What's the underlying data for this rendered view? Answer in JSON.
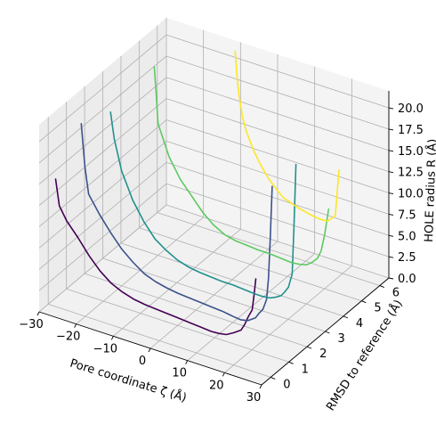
{
  "chart_data": {
    "type": "line3d",
    "xlabel": "Pore coordinate ζ (Å)",
    "ylabel": "RMSD to reference (Å)",
    "zlabel": "HOLE radius R (Å)",
    "xlim": [
      -30,
      30
    ],
    "ylim": [
      -0.5,
      6.5
    ],
    "zlim": [
      0,
      22
    ],
    "x_ticks": [
      -30,
      -20,
      -10,
      0,
      10,
      20,
      30
    ],
    "y_ticks": [
      0,
      1,
      2,
      3,
      4,
      5,
      6
    ],
    "z_ticks": [
      0.0,
      2.5,
      5.0,
      7.5,
      10.0,
      12.5,
      15.0,
      17.5,
      20.0
    ],
    "x_tick_labels": [
      "−30",
      "−20",
      "−10",
      "0",
      "10",
      "20",
      "30"
    ],
    "y_tick_labels": [
      "0",
      "1",
      "2",
      "3",
      "4",
      "5",
      "6"
    ],
    "z_tick_labels": [
      "0.0",
      "2.5",
      "5.0",
      "7.5",
      "10.0",
      "12.5",
      "15.0",
      "17.5",
      "20.0"
    ],
    "grid": true,
    "series": [
      {
        "rmsd": 0,
        "color": "#440154",
        "zeta": [
          -28,
          -27,
          -25,
          -22,
          -19,
          -16,
          -13,
          -10,
          -7,
          -4,
          -1,
          2,
          5,
          8,
          11,
          14,
          16,
          18,
          20,
          22,
          23,
          24,
          25,
          25.5,
          26
        ],
        "radius": [
          15,
          12,
          10.5,
          9,
          7.3,
          5.9,
          4.9,
          4.3,
          3.9,
          3.7,
          3.6,
          3.5,
          3.4,
          3.3,
          3.2,
          3.1,
          3.15,
          3.3,
          3.8,
          4.4,
          5.2,
          6.3,
          7.2,
          9,
          11
        ]
      },
      {
        "rmsd": 1,
        "color": "#3b528b",
        "zeta": [
          -26,
          -25,
          -24,
          -21,
          -18,
          -15,
          -12,
          -9,
          -6,
          -3,
          0,
          3,
          6,
          9,
          12,
          15,
          17,
          19,
          21,
          22,
          23,
          24,
          24.5,
          25,
          25.5
        ],
        "radius": [
          20,
          15,
          12,
          10,
          8.3,
          6.8,
          5.7,
          4.8,
          4.3,
          4,
          3.8,
          3.7,
          3.6,
          3.5,
          3.4,
          3.2,
          3.1,
          3.3,
          3.9,
          4.6,
          5.2,
          6.5,
          9,
          14,
          20
        ]
      },
      {
        "rmsd": 2,
        "color": "#21918c",
        "zeta": [
          -23,
          -22,
          -20,
          -17,
          -14,
          -11,
          -8,
          -5,
          -2,
          1,
          4,
          7,
          10,
          13,
          16,
          18,
          20,
          21.5,
          23,
          24,
          25,
          26,
          26.5,
          27
        ],
        "radius": [
          20,
          17,
          13.5,
          10.5,
          8.4,
          6.8,
          5.9,
          5.2,
          4.8,
          4.6,
          4.5,
          4.4,
          4.4,
          4.3,
          4.2,
          4.2,
          4.3,
          4.6,
          5,
          5.6,
          6.3,
          8,
          14,
          21
        ]
      },
      {
        "rmsd": 4,
        "color": "#5ec962",
        "zeta": [
          -21,
          -20.5,
          -20,
          -17,
          -14,
          -11,
          -8,
          -5,
          -2,
          1,
          4,
          7,
          10,
          13,
          16,
          18,
          20,
          21.5,
          23,
          24,
          25,
          26
        ],
        "radius": [
          22,
          19,
          15.5,
          12,
          9.8,
          8.3,
          6.8,
          5.7,
          5,
          4.7,
          4.6,
          4.5,
          4.5,
          4.4,
          4.3,
          4.4,
          4.6,
          5.1,
          5.8,
          6.8,
          9,
          12
        ]
      },
      {
        "rmsd": 6,
        "color": "#fde725",
        "zeta": [
          -9,
          -8.5,
          -8,
          -7,
          -6,
          -4,
          -2,
          0,
          2,
          4,
          6,
          8,
          10,
          12,
          14,
          16,
          18,
          19
        ],
        "radius": [
          22,
          19,
          17,
          14.5,
          13,
          11,
          9.5,
          8.3,
          7.4,
          6.6,
          6.3,
          6,
          5.8,
          5.6,
          5.5,
          5.6,
          6.5,
          12
        ]
      }
    ]
  }
}
